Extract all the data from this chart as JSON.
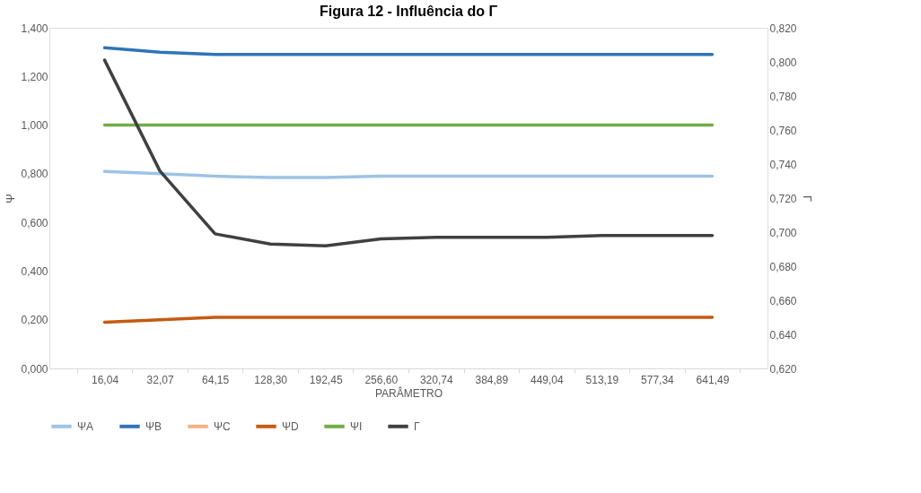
{
  "chart_data": {
    "type": "line",
    "title": "Figura 12 - Influência do Γ",
    "xlabel": "PARÂMETRO",
    "ylabel": "Ψ",
    "y2label": "Γ",
    "categories": [
      "16,04",
      "32,07",
      "64,15",
      "128,30",
      "192,45",
      "256,60",
      "320,74",
      "384,89",
      "449,04",
      "513,19",
      "577,34",
      "641,49"
    ],
    "series": [
      {
        "name": "ΨA",
        "color": "#9dc3e6",
        "values": [
          0.81,
          0.8,
          0.79,
          0.785,
          0.785,
          0.79,
          0.79,
          0.79,
          0.79,
          0.79,
          0.79,
          0.79
        ]
      },
      {
        "name": "ΨB",
        "color": "#2e75b6",
        "values": [
          1.318,
          1.3,
          1.29,
          1.29,
          1.29,
          1.29,
          1.29,
          1.29,
          1.29,
          1.29,
          1.29,
          1.29
        ]
      },
      {
        "name": "ΨC",
        "color": "#f4b183",
        "values": [
          null,
          null,
          null,
          null,
          null,
          null,
          null,
          null,
          null,
          null,
          null,
          null
        ]
      },
      {
        "name": "ΨD",
        "color": "#c55a11",
        "values": [
          0.19,
          0.2,
          0.21,
          0.21,
          0.21,
          0.21,
          0.21,
          0.21,
          0.21,
          0.21,
          0.21,
          0.21
        ]
      },
      {
        "name": "ΨI",
        "color": "#70ad47",
        "values": [
          1.0,
          1.0,
          1.0,
          1.0,
          1.0,
          1.0,
          1.0,
          1.0,
          1.0,
          1.0,
          1.0,
          1.0
        ]
      },
      {
        "name": "Γ",
        "color": "#404040",
        "axis": "y2",
        "values": [
          0.801,
          0.736,
          0.699,
          0.693,
          0.692,
          0.696,
          0.697,
          0.697,
          0.697,
          0.698,
          0.698,
          0.698
        ]
      }
    ],
    "ylim": [
      0,
      1.4
    ],
    "yticks": [
      {
        "value": 0,
        "label": "0,000"
      },
      {
        "value": 0.2,
        "label": "0,200"
      },
      {
        "value": 0.4,
        "label": "0,400"
      },
      {
        "value": 0.6,
        "label": "0,600"
      },
      {
        "value": 0.8,
        "label": "0,800"
      },
      {
        "value": 1.0,
        "label": "1,000"
      },
      {
        "value": 1.2,
        "label": "1,200"
      },
      {
        "value": 1.4,
        "label": "1,400"
      }
    ],
    "y2lim": [
      0.62,
      0.82
    ],
    "y2ticks": [
      {
        "value": 0.62,
        "label": "0,620"
      },
      {
        "value": 0.64,
        "label": "0,640"
      },
      {
        "value": 0.66,
        "label": "0,660"
      },
      {
        "value": 0.68,
        "label": "0,680"
      },
      {
        "value": 0.7,
        "label": "0,700"
      },
      {
        "value": 0.72,
        "label": "0,720"
      },
      {
        "value": 0.74,
        "label": "0,740"
      },
      {
        "value": 0.76,
        "label": "0,760"
      },
      {
        "value": 0.78,
        "label": "0,780"
      },
      {
        "value": 0.8,
        "label": "0,800"
      },
      {
        "value": 0.82,
        "label": "0,820"
      }
    ],
    "grid": false,
    "legend": "bottom",
    "line_style": "solid",
    "marker": "none"
  }
}
